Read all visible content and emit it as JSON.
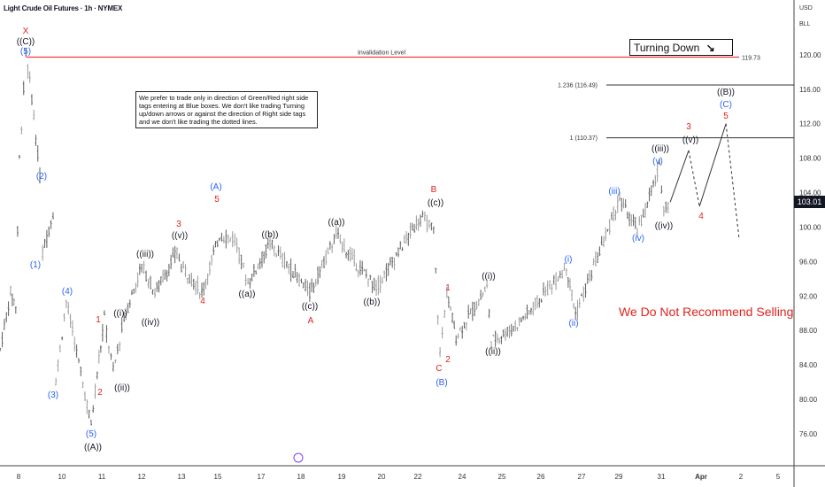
{
  "header": {
    "title": "Light Crude Oil Futures · 1h · NYMEX",
    "currency": "USD",
    "unit": "BLL"
  },
  "note": "We prefer to trade only in direction of Green/Red right side tags entering at Blue boxes. We don't like trading Turning up/down arrows or against the direction of Right side tags and we don't like trading the dotted lines.",
  "turning_label": "Turning Down",
  "turning_icon": "arrow-down-right-icon",
  "warning": "We Do Not Recommend Selling",
  "current_price": "103.01",
  "colors": {
    "red": "#e3211c",
    "blue": "#2962ff",
    "black": "#131722",
    "bars": "#8a8a8a",
    "invalidation": "#f23645"
  },
  "chart_data": {
    "type": "line",
    "title": "Light Crude Oil Futures · 1h · NYMEX",
    "ylim": [
      72,
      124
    ],
    "yticks": [
      "120.00",
      "116.00",
      "112.00",
      "108.00",
      "104.00",
      "100.00",
      "96.00",
      "92.00",
      "88.00",
      "84.00",
      "80.00",
      "76.00"
    ],
    "ytick_values": [
      120,
      116,
      112,
      108,
      104,
      100,
      96,
      92,
      88,
      84,
      80,
      76
    ],
    "xticks": [
      "8",
      "10",
      "11",
      "12",
      "13",
      "15",
      "17",
      "18",
      "19",
      "20",
      "22",
      "24",
      "25",
      "26",
      "27",
      "29",
      "31",
      "Apr",
      "2",
      "5"
    ],
    "price_path": [
      [
        -0.46,
        85.8
      ],
      [
        -0.2,
        92.4
      ],
      [
        -0.07,
        90.9
      ],
      [
        0.02,
        107.9
      ],
      [
        0.18,
        120
      ],
      [
        0.33,
        115.1
      ],
      [
        0.53,
        105.8
      ],
      [
        0.6,
        97.1
      ],
      [
        0.86,
        101.7
      ],
      [
        0.93,
        82.2
      ],
      [
        1.19,
        91.4
      ],
      [
        1.81,
        77.0
      ],
      [
        1.96,
        83.2
      ],
      [
        2.14,
        89.4
      ],
      [
        2.36,
        83.2
      ],
      [
        2.63,
        89.4
      ],
      [
        3.07,
        95.5
      ],
      [
        3.4,
        92.4
      ],
      [
        3.95,
        97.1
      ],
      [
        4.06,
        95.5
      ],
      [
        4.57,
        92.4
      ],
      [
        5.01,
        99.1
      ],
      [
        5.39,
        98.6
      ],
      [
        5.72,
        93.5
      ],
      [
        6.27,
        98.1
      ],
      [
        7.26,
        92.4
      ],
      [
        7.92,
        99.1
      ],
      [
        8.37,
        96.0
      ],
      [
        8.92,
        93.0
      ],
      [
        10.02,
        101.2
      ],
      [
        10.35,
        99.6
      ],
      [
        10.51,
        85.2
      ],
      [
        10.68,
        92.4
      ],
      [
        10.91,
        87.3
      ],
      [
        11.68,
        93.0
      ],
      [
        11.79,
        86.8
      ],
      [
        12.34,
        88.3
      ],
      [
        12.78,
        90.4
      ],
      [
        13.66,
        95.5
      ],
      [
        13.89,
        89.9
      ],
      [
        14.99,
        103.2
      ],
      [
        15.43,
        99.6
      ],
      [
        15.98,
        106.8
      ],
      [
        16.09,
        102.4
      ],
      [
        16.25,
        102.9
      ]
    ],
    "projection": [
      [
        16.25,
        102.9
      ],
      [
        16.71,
        108.9
      ],
      [
        16.98,
        102.4
      ],
      [
        17.64,
        112.0
      ],
      [
        17.97,
        98.6
      ]
    ],
    "projection_styles": [
      "solid",
      "dashed",
      "solid",
      "dashed"
    ],
    "levels": [
      {
        "label": "Invalidation Level",
        "value": 119.73,
        "value_label": "119.73"
      },
      {
        "label": "1.236 (116.49)",
        "value": 116.49
      },
      {
        "label": "1 (110.37)",
        "value": 110.37
      }
    ],
    "wave_labels": [
      {
        "t": "X",
        "c": "red"
      },
      {
        "t": "((C))",
        "c": "black"
      },
      {
        "t": "(5)",
        "c": "blue"
      },
      {
        "t": "(2)",
        "c": "blue"
      },
      {
        "t": "(1)",
        "c": "blue"
      },
      {
        "t": "(4)",
        "c": "blue"
      },
      {
        "t": "(3)",
        "c": "blue"
      },
      {
        "t": "(5)",
        "c": "blue"
      },
      {
        "t": "((A))",
        "c": "black"
      },
      {
        "t": "1",
        "c": "red"
      },
      {
        "t": "((i))",
        "c": "black"
      },
      {
        "t": "2",
        "c": "red"
      },
      {
        "t": "((ii))",
        "c": "black"
      },
      {
        "t": "((iii))",
        "c": "black"
      },
      {
        "t": "((iv))",
        "c": "black"
      },
      {
        "t": "3",
        "c": "red"
      },
      {
        "t": "((v))",
        "c": "black"
      },
      {
        "t": "4",
        "c": "red"
      },
      {
        "t": "(A)",
        "c": "blue"
      },
      {
        "t": "5",
        "c": "red"
      },
      {
        "t": "((a))",
        "c": "black"
      },
      {
        "t": "((b))",
        "c": "black"
      },
      {
        "t": "((c))",
        "c": "black"
      },
      {
        "t": "A",
        "c": "red"
      },
      {
        "t": "((a))",
        "c": "black"
      },
      {
        "t": "((b))",
        "c": "black"
      },
      {
        "t": "B",
        "c": "red"
      },
      {
        "t": "((c))",
        "c": "black"
      },
      {
        "t": "1",
        "c": "red"
      },
      {
        "t": "C",
        "c": "red"
      },
      {
        "t": "2",
        "c": "red"
      },
      {
        "t": "(B)",
        "c": "blue"
      },
      {
        "t": "((i))",
        "c": "black"
      },
      {
        "t": "((ii))",
        "c": "black"
      },
      {
        "t": "(i)",
        "c": "blue"
      },
      {
        "t": "(ii)",
        "c": "blue"
      },
      {
        "t": "(iii)",
        "c": "blue"
      },
      {
        "t": "(iv)",
        "c": "blue"
      },
      {
        "t": "(v)",
        "c": "blue"
      },
      {
        "t": "((iii))",
        "c": "black"
      },
      {
        "t": "((iv))",
        "c": "black"
      },
      {
        "t": "3",
        "c": "red"
      },
      {
        "t": "((v))",
        "c": "black"
      },
      {
        "t": "4",
        "c": "red"
      },
      {
        "t": "((B))",
        "c": "black"
      },
      {
        "t": "(C)",
        "c": "blue"
      },
      {
        "t": "5",
        "c": "red"
      }
    ]
  }
}
